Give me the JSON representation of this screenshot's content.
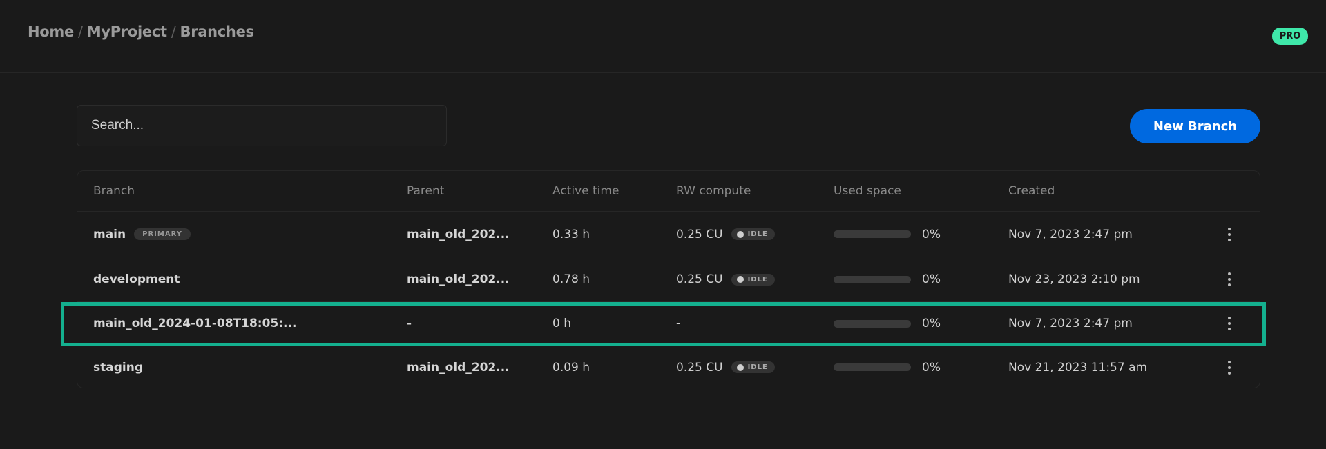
{
  "breadcrumb": [
    "Home",
    "MyProject",
    "Branches"
  ],
  "plan_badge": "PRO",
  "search": {
    "placeholder": "Search...",
    "value": ""
  },
  "new_branch_label": "New Branch",
  "colors": {
    "accent": "#0069e0",
    "pro": "#3fe8aa",
    "highlight": "#14b08f"
  },
  "table": {
    "headers": [
      "Branch",
      "Parent",
      "Active time",
      "RW compute",
      "Used space",
      "Created"
    ],
    "rows": [
      {
        "branch": "main",
        "badge": "PRIMARY",
        "parent": "main_old_202...",
        "active": "0.33 h",
        "compute": "0.25 CU",
        "status": "IDLE",
        "used_pct": 0,
        "used": "0%",
        "created": "Nov 7, 2023 2:47 pm"
      },
      {
        "branch": "development",
        "badge": null,
        "parent": "main_old_202...",
        "active": "0.78 h",
        "compute": "0.25 CU",
        "status": "IDLE",
        "used_pct": 0,
        "used": "0%",
        "created": "Nov 23, 2023 2:10 pm"
      },
      {
        "branch": "main_old_2024-01-08T18:05:...",
        "badge": null,
        "parent": "-",
        "active": "0 h",
        "compute": "-",
        "status": null,
        "used_pct": 0,
        "used": "0%",
        "created": "Nov 7, 2023 2:47 pm",
        "highlighted": true
      },
      {
        "branch": "staging",
        "badge": null,
        "parent": "main_old_202...",
        "active": "0.09 h",
        "compute": "0.25 CU",
        "status": "IDLE",
        "used_pct": 0,
        "used": "0%",
        "created": "Nov 21, 2023 11:57 am"
      }
    ]
  }
}
